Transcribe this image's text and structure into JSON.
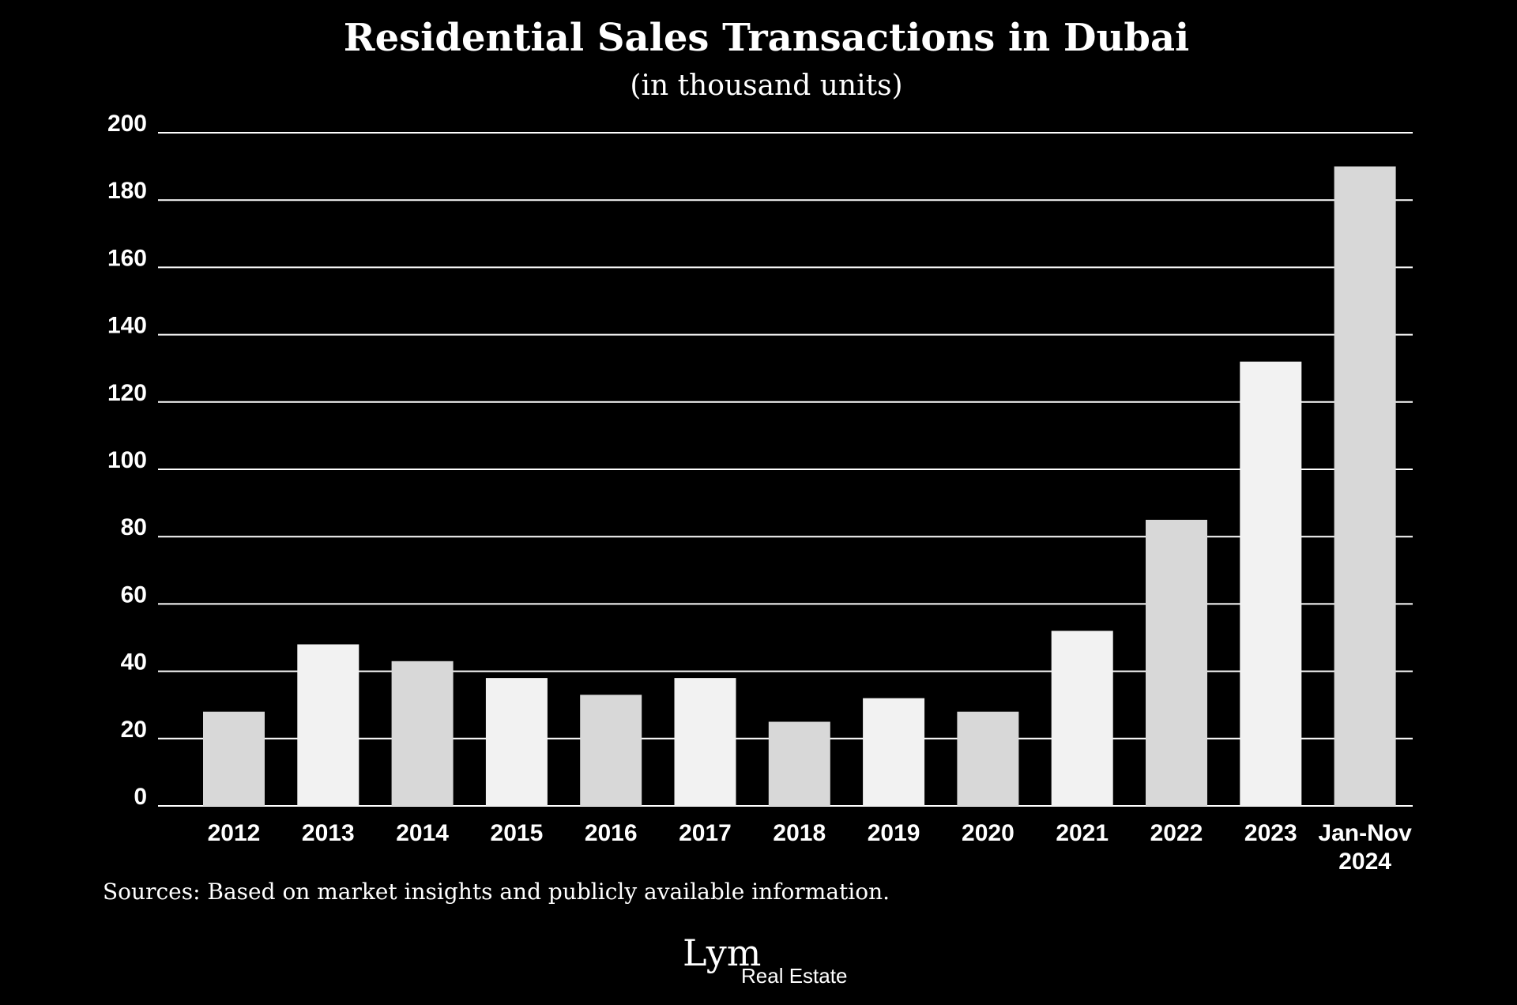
{
  "chart_data": {
    "type": "bar",
    "title": "Residential Sales Transactions in Dubai",
    "subtitle": "(in thousand units)",
    "categories": [
      "2012",
      "2013",
      "2014",
      "2015",
      "2016",
      "2017",
      "2018",
      "2019",
      "2020",
      "2021",
      "2022",
      "2023",
      "Jan-Nov 2024"
    ],
    "values": [
      28,
      48,
      43,
      38,
      33,
      38,
      25,
      32,
      28,
      52,
      85,
      132,
      190
    ],
    "ylim": [
      0,
      200
    ],
    "yticks": [
      0,
      20,
      40,
      60,
      80,
      100,
      120,
      140,
      160,
      180,
      200
    ],
    "xlabel": "",
    "ylabel": "",
    "grid": true,
    "bar_colors": [
      "#d8d8d8",
      "#f2f2f2"
    ]
  },
  "footer": {
    "source": "Sources: Based on market insights and publicly available information."
  },
  "logo": {
    "mark": "Lym",
    "subtitle": "Real Estate"
  },
  "colors": {
    "background": "#000000",
    "grid": "#ffffff",
    "text": "#ffffff"
  }
}
